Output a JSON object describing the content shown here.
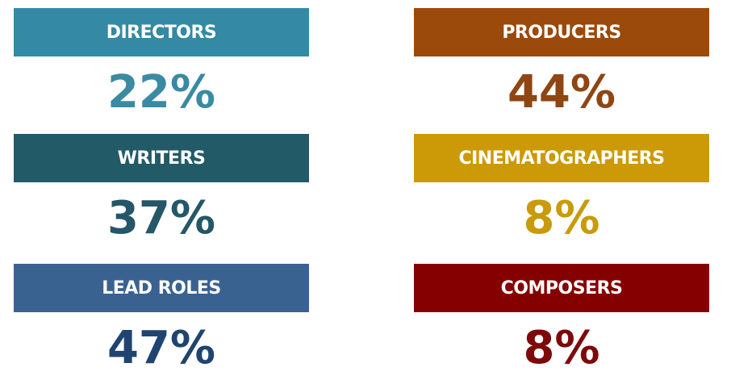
{
  "tiles": [
    {
      "label": "DIRECTORS",
      "value": "22%",
      "color": "#348aa4",
      "value_color": "#3a8aa3"
    },
    {
      "label": "PRODUCERS",
      "value": "44%",
      "color": "#9b4a0b",
      "value_color": "#8f4613"
    },
    {
      "label": "WRITERS",
      "value": "37%",
      "color": "#235a68",
      "value_color": "#245767"
    },
    {
      "label": "CINEMATOGRAPHERS",
      "value": "8%",
      "color": "#cc9a06",
      "value_color": "#c99a0a"
    },
    {
      "label": "LEAD ROLES",
      "value": "47%",
      "color": "#3a6291",
      "value_color": "#1f4470"
    },
    {
      "label": "COMPOSERS",
      "value": "8%",
      "color": "#850000",
      "value_color": "#7d0a0a"
    }
  ]
}
